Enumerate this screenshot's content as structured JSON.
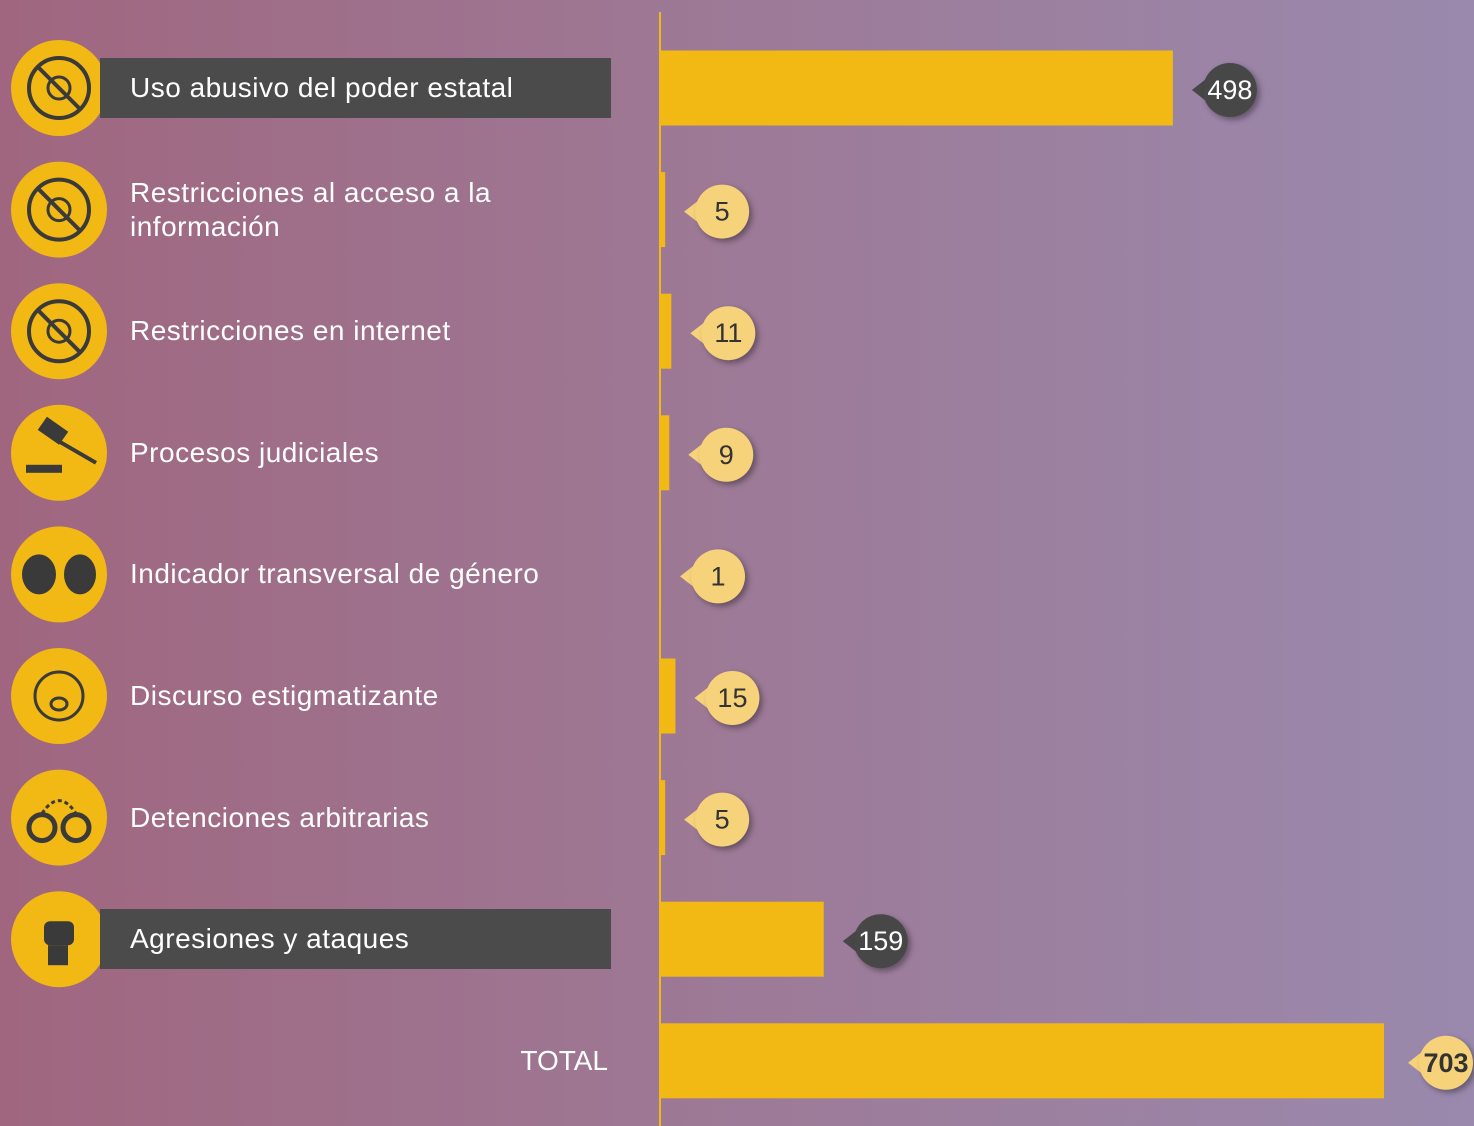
{
  "chart_data": {
    "type": "bar",
    "categories": [
      "Uso abusivo del poder estatal",
      "Restricciones al acceso a la información",
      "Restricciones en internet",
      "Procesos judiciales",
      "Indicador transversal de género",
      "Discurso estigmatizante",
      "Detenciones arbitrarias",
      "Agresiones y ataques"
    ],
    "values": [
      498,
      5,
      11,
      9,
      1,
      15,
      5,
      159
    ],
    "highlighted": [
      true,
      false,
      false,
      false,
      false,
      false,
      false,
      true
    ],
    "total": {
      "label": "TOTAL",
      "value": 703
    },
    "color": "#f2b814"
  }
}
